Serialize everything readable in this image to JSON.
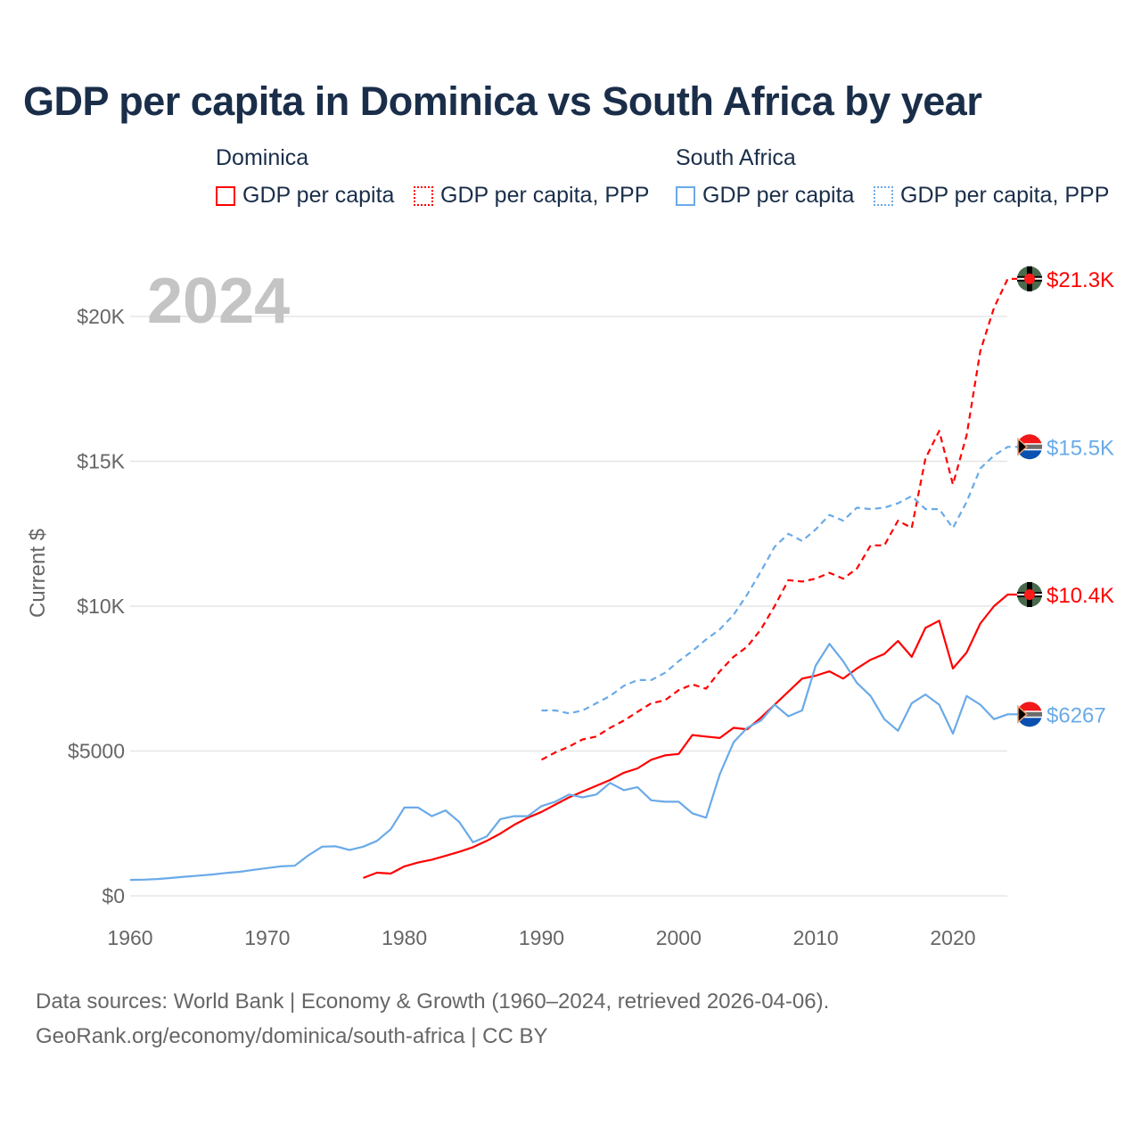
{
  "title": "GDP per capita in Dominica vs South Africa by year",
  "legend": {
    "groups": [
      {
        "name": "Dominica",
        "items": [
          "GDP per capita",
          "GDP per capita, PPP"
        ]
      },
      {
        "name": "South Africa",
        "items": [
          "GDP per capita",
          "GDP per capita, PPP"
        ]
      }
    ]
  },
  "year_watermark": "2024",
  "footer": {
    "line1": "Data sources: World Bank | Economy & Growth (1960–2024, retrieved 2026-04-06).",
    "line2": "GeoRank.org/economy/dominica/south-africa | CC BY"
  },
  "colors": {
    "dominica": "#ff0000",
    "south_africa": "#6aaae8"
  },
  "chart_data": {
    "type": "line",
    "title": "GDP per capita in Dominica vs South Africa by year",
    "xlabel": "",
    "ylabel": "Current $",
    "xlim": [
      1960,
      2024
    ],
    "ylim": [
      0,
      22000
    ],
    "x_ticks": [
      1960,
      1970,
      1980,
      1990,
      2000,
      2010,
      2020
    ],
    "x_tick_labels": [
      "1960",
      "1970",
      "1980",
      "1990",
      "2000",
      "2010",
      "2020"
    ],
    "y_ticks": [
      0,
      5000,
      10000,
      15000,
      20000
    ],
    "y_tick_labels": [
      "$0",
      "$5000",
      "$10K",
      "$15K",
      "$20K"
    ],
    "grid": true,
    "legend_position": "top",
    "series": [
      {
        "name": "Dominica GDP per capita PPP",
        "color": "#ff0000",
        "dashed": true,
        "start": 1990,
        "end_label": "$21.3K",
        "flag": "dominica",
        "values": [
          4700,
          4950,
          5150,
          5400,
          5500,
          5800,
          6050,
          6350,
          6650,
          6750,
          7100,
          7300,
          7150,
          7750,
          8250,
          8600,
          9200,
          10000,
          10900,
          10850,
          10950,
          11150,
          10950,
          11300,
          12100,
          12100,
          12950,
          12700,
          15100,
          16050,
          14200,
          15900,
          18800,
          20300,
          21300
        ]
      },
      {
        "name": "South Africa GDP per capita PPP",
        "color": "#6aaae8",
        "dashed": true,
        "start": 1990,
        "end_label": "$15.5K",
        "flag": "south-africa",
        "values": [
          6400,
          6400,
          6300,
          6400,
          6650,
          6900,
          7250,
          7450,
          7450,
          7700,
          8100,
          8450,
          8850,
          9200,
          9700,
          10400,
          11200,
          12050,
          12500,
          12250,
          12650,
          13150,
          12950,
          13400,
          13350,
          13400,
          13550,
          13800,
          13350,
          13350,
          12700,
          13600,
          14750,
          15200,
          15500
        ]
      },
      {
        "name": "Dominica GDP per capita",
        "color": "#ff0000",
        "dashed": false,
        "start": 1977,
        "end_label": "$10.4K",
        "flag": "dominica",
        "values": [
          620,
          800,
          770,
          1020,
          1150,
          1250,
          1380,
          1520,
          1680,
          1900,
          2150,
          2450,
          2700,
          2900,
          3150,
          3400,
          3600,
          3800,
          4000,
          4250,
          4400,
          4700,
          4850,
          4900,
          5550,
          5500,
          5450,
          5800,
          5750,
          6150,
          6600,
          7050,
          7500,
          7600,
          7750,
          7500,
          7850,
          8150,
          8350,
          8800,
          8250,
          9250,
          9500,
          7850,
          8400,
          9400,
          10000,
          10400
        ]
      },
      {
        "name": "South Africa GDP per capita",
        "color": "#6aaae8",
        "dashed": false,
        "start": 1960,
        "end_label": "$6267",
        "flag": "south-africa",
        "values": [
          550,
          560,
          580,
          620,
          660,
          700,
          740,
          790,
          830,
          900,
          960,
          1020,
          1040,
          1400,
          1700,
          1710,
          1580,
          1700,
          1900,
          2300,
          3050,
          3050,
          2750,
          2950,
          2550,
          1850,
          2050,
          2650,
          2750,
          2750,
          3100,
          3250,
          3500,
          3400,
          3500,
          3900,
          3650,
          3750,
          3300,
          3250,
          3250,
          2850,
          2700,
          4200,
          5300,
          5800,
          6050,
          6600,
          6200,
          6400,
          7950,
          8700,
          8100,
          7350,
          6900,
          6100,
          5700,
          6650,
          6950,
          6600,
          5600,
          6900,
          6600,
          6100,
          6267
        ]
      }
    ]
  }
}
